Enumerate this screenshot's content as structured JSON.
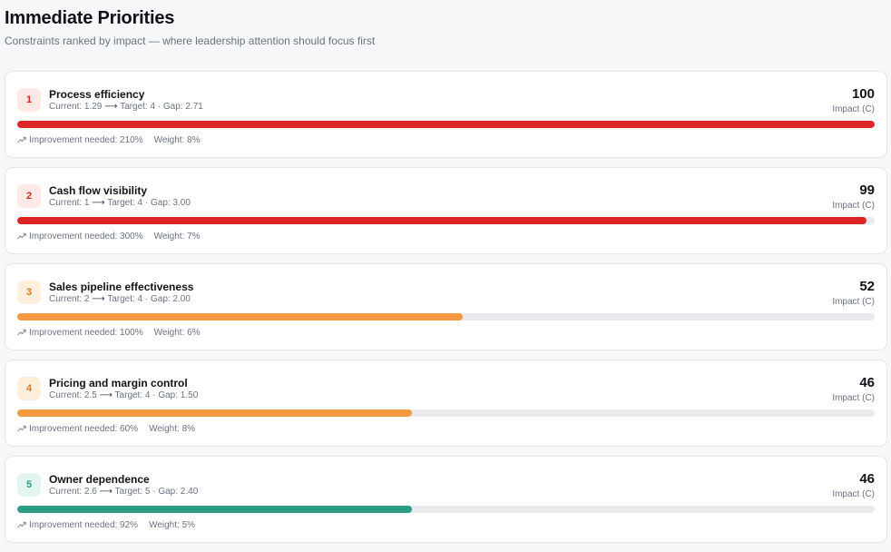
{
  "header": {
    "title": "Immediate Priorities",
    "subtitle": "Constraints ranked by impact — where leadership attention should focus first"
  },
  "colors": {
    "red": "#dc2626",
    "orange": "#f59a40",
    "teal": "#2a9d84",
    "track": "#e9eaee"
  },
  "priorities": [
    {
      "rank": "1",
      "name": "Process efficiency",
      "current_label": "Current: 1.29",
      "arrow": "⟶",
      "target_gap": "Target: 4 · Gap: 2.71",
      "score": "100",
      "score_label": "Impact (C)",
      "impact_percent": 100,
      "improvement": "Improvement needed: 210%",
      "weight": "Weight: 8%",
      "color": "#dc2626",
      "badge_bg": "#fde8e8",
      "badge_fg": "#dc2626"
    },
    {
      "rank": "2",
      "name": "Cash flow visibility",
      "current_label": "Current: 1",
      "arrow": "⟶",
      "target_gap": "Target: 4 · Gap: 3.00",
      "score": "99",
      "score_label": "Impact (C)",
      "impact_percent": 99,
      "improvement": "Improvement needed: 300%",
      "weight": "Weight: 7%",
      "color": "#dc2626",
      "badge_bg": "#fde8e8",
      "badge_fg": "#dc2626"
    },
    {
      "rank": "3",
      "name": "Sales pipeline effectiveness",
      "current_label": "Current: 2",
      "arrow": "⟶",
      "target_gap": "Target: 4 · Gap: 2.00",
      "score": "52",
      "score_label": "Impact (C)",
      "impact_percent": 52,
      "improvement": "Improvement needed: 100%",
      "weight": "Weight: 6%",
      "color": "#f59a40",
      "badge_bg": "#feefdc",
      "badge_fg": "#e8761d"
    },
    {
      "rank": "4",
      "name": "Pricing and margin control",
      "current_label": "Current: 2.5",
      "arrow": "⟶",
      "target_gap": "Target: 4 · Gap: 1.50",
      "score": "46",
      "score_label": "Impact (C)",
      "impact_percent": 46,
      "improvement": "Improvement needed: 60%",
      "weight": "Weight: 8%",
      "color": "#f59a40",
      "badge_bg": "#feefdc",
      "badge_fg": "#e8761d"
    },
    {
      "rank": "5",
      "name": "Owner dependence",
      "current_label": "Current: 2.6",
      "arrow": "⟶",
      "target_gap": "Target: 5 · Gap: 2.40",
      "score": "46",
      "score_label": "Impact (C)",
      "impact_percent": 46,
      "improvement": "Improvement needed: 92%",
      "weight": "Weight: 5%",
      "color": "#2a9d84",
      "badge_bg": "#e3f5f0",
      "badge_fg": "#2a9d84"
    }
  ]
}
